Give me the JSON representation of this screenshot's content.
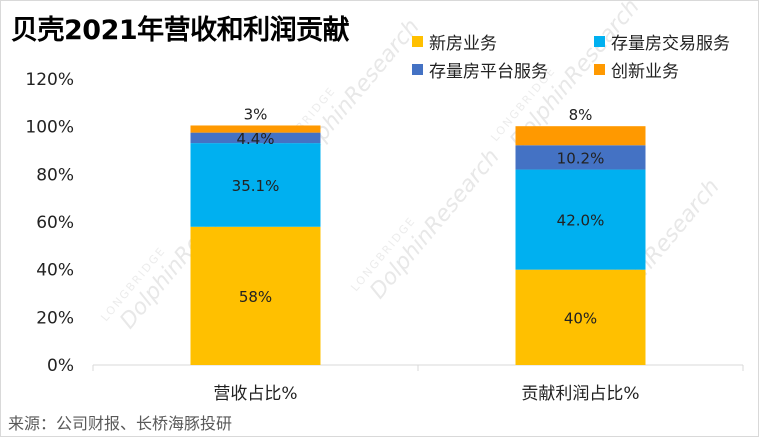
{
  "chart_data": {
    "type": "bar",
    "stacked": true,
    "title": "贝壳2021年营收和利润贡献",
    "categories": [
      "营收占比%",
      "贡献利润占比%"
    ],
    "series": [
      {
        "name": "新房业务",
        "color": "#ffc000",
        "values": [
          58,
          40
        ],
        "labels": [
          "58%",
          "40%"
        ]
      },
      {
        "name": "存量房交易服务",
        "color": "#00b0f0",
        "values": [
          35.1,
          42.0
        ],
        "labels": [
          "35.1%",
          "42.0%"
        ]
      },
      {
        "name": "存量房平台服务",
        "color": "#4472c4",
        "values": [
          4.4,
          10.2
        ],
        "labels": [
          "4.4%",
          "10.2%"
        ]
      },
      {
        "name": "创新业务",
        "color": "#ff9900",
        "values": [
          3,
          8
        ],
        "labels": [
          "3%",
          "8%"
        ]
      }
    ],
    "legend_order": [
      [
        "新房业务",
        "存量房交易服务"
      ],
      [
        "存量房平台服务",
        "创新业务"
      ]
    ],
    "ylim": [
      0,
      120
    ],
    "yticks": [
      0,
      20,
      40,
      60,
      80,
      100,
      120
    ],
    "ytick_labels": [
      "0%",
      "20%",
      "40%",
      "60%",
      "80%",
      "100%",
      "120%"
    ],
    "grid": false,
    "legend_position": "top-right"
  },
  "watermark": {
    "text": "DolphinResearch",
    "subtext": "LONGBRIDGE"
  },
  "source": "来源：公司财报、长桥海豚投研"
}
